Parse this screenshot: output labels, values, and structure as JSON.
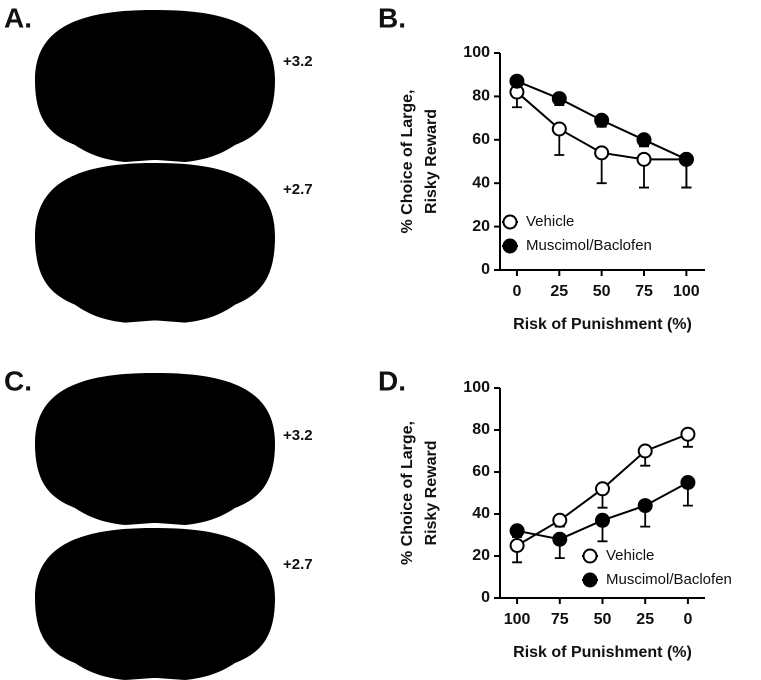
{
  "figure": {
    "panel_labels": [
      "A.",
      "B.",
      "C.",
      "D."
    ],
    "atlas_levels": [
      [
        "+3.2",
        "+2.7"
      ],
      [
        "+3.2",
        "+2.7"
      ]
    ]
  },
  "chart_data": [
    {
      "type": "line",
      "ylabel": [
        "% Choice of Large,",
        "Risky  Reward"
      ],
      "xlabel": "Risk of Punishment (%)",
      "x": [
        0,
        25,
        50,
        75,
        100
      ],
      "xlim": [
        -10,
        111
      ],
      "xticks": [
        0,
        25,
        50,
        75,
        100
      ],
      "ylim": [
        0,
        100
      ],
      "yticks": [
        0,
        20,
        40,
        60,
        80,
        100
      ],
      "series": [
        {
          "name": "Vehicle",
          "color": "#000000",
          "marker_fill": "#ffffff",
          "values": [
            82,
            65,
            54,
            51,
            51
          ],
          "errors": [
            7,
            12,
            14,
            13,
            13
          ]
        },
        {
          "name": "Muscimol/Baclofen",
          "color": "#000000",
          "marker_fill": "#000000",
          "values": [
            87,
            79,
            69,
            60,
            51
          ],
          "errors": [
            3,
            3,
            3,
            3,
            13
          ]
        }
      ]
    },
    {
      "type": "line",
      "ylabel": [
        "% Choice of Large,",
        "Risky  Reward"
      ],
      "xlabel": "Risk of Punishment (%)",
      "x": [
        100,
        75,
        50,
        25,
        0
      ],
      "xlim": [
        110,
        -10
      ],
      "xticks": [
        100,
        75,
        50,
        25,
        0
      ],
      "ylim": [
        0,
        100
      ],
      "yticks": [
        0,
        20,
        40,
        60,
        80,
        100
      ],
      "series": [
        {
          "name": "Vehicle",
          "color": "#000000",
          "marker_fill": "#ffffff",
          "values": [
            25,
            37,
            52,
            70,
            78
          ],
          "errors": [
            8,
            3,
            9,
            7,
            6
          ]
        },
        {
          "name": "Muscimol/Baclofen",
          "color": "#000000",
          "marker_fill": "#000000",
          "values": [
            32,
            28,
            37,
            44,
            55
          ],
          "errors": [
            3,
            9,
            10,
            10,
            11
          ]
        }
      ]
    }
  ]
}
